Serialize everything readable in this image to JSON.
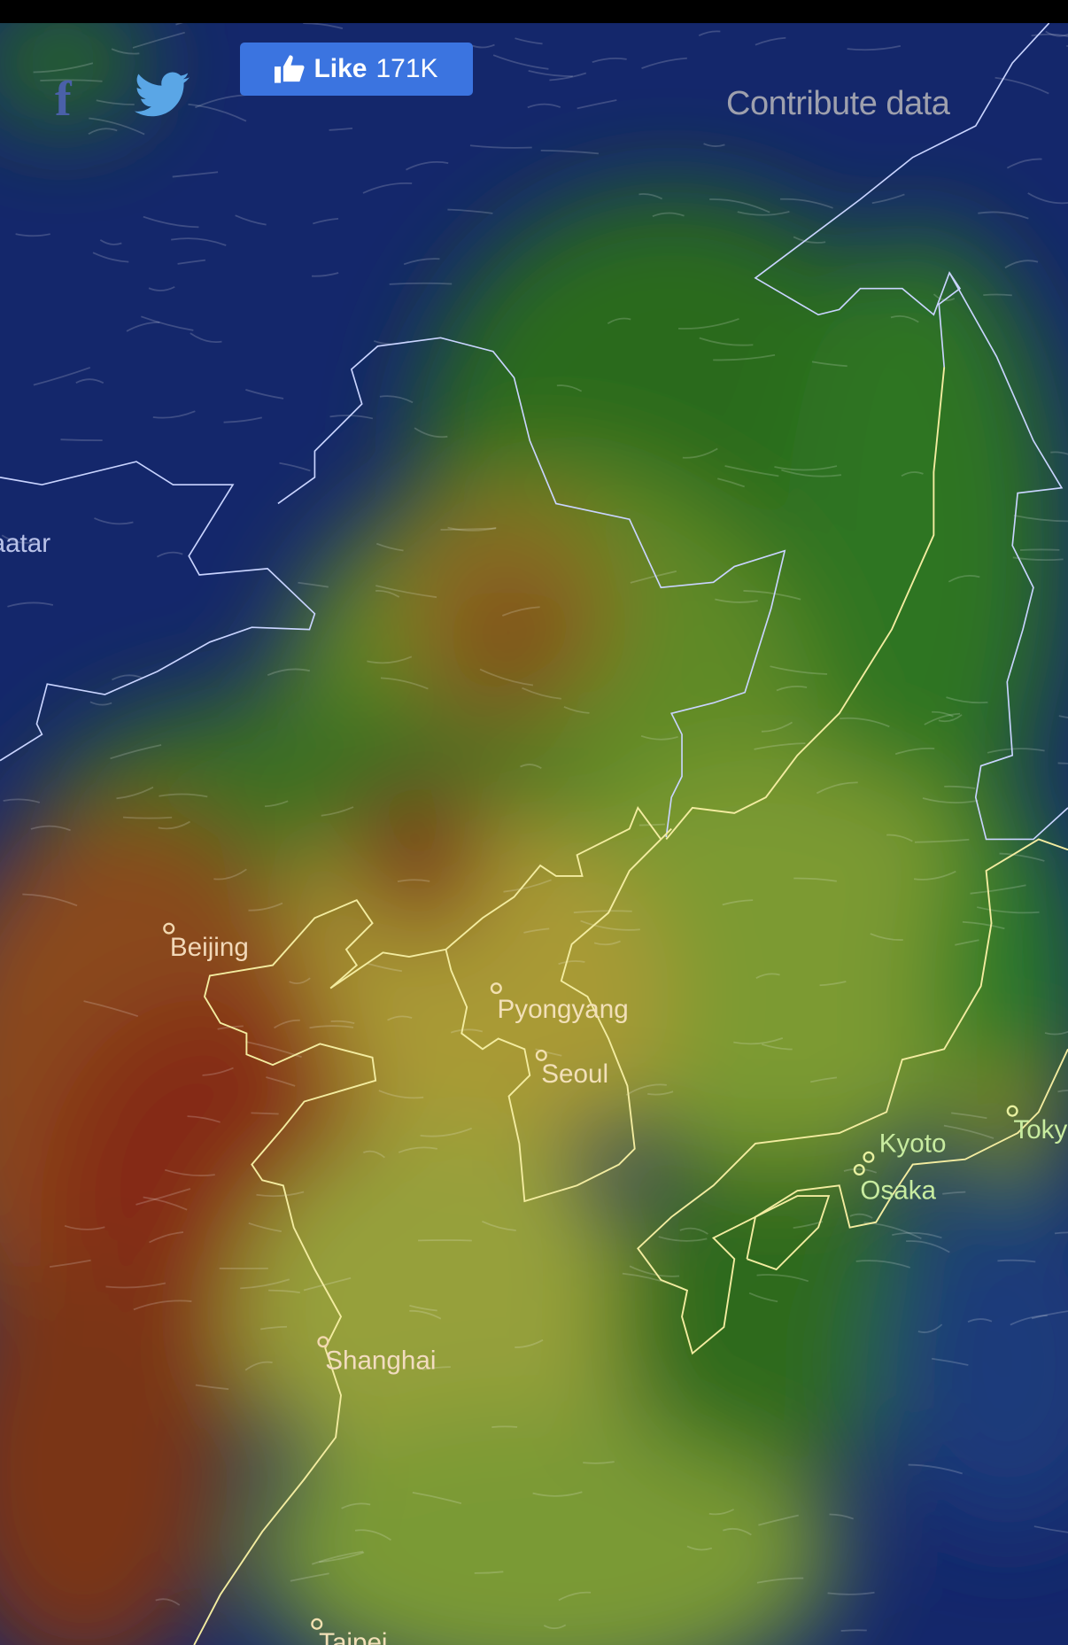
{
  "header": {
    "facebook_icon": "facebook-icon",
    "twitter_icon": "twitter-icon",
    "like_button": {
      "icon": "thumbs-up-icon",
      "label": "Like",
      "count": "171K",
      "color": "#3b74e0"
    },
    "contribute_label": "Contribute data"
  },
  "map": {
    "colors": {
      "low": "#14276b",
      "mid": "#2f6e1e",
      "high": "#a9a033",
      "very_high": "#8a2a12",
      "coastline_land": "#f3eca0",
      "border": "#c9d4ff"
    },
    "cities": [
      {
        "name": "Ulaanbaatar"
      },
      {
        "name": "Beijing"
      },
      {
        "name": "Pyongyang"
      },
      {
        "name": "Seoul"
      },
      {
        "name": "Shanghai"
      },
      {
        "name": "Kyoto"
      },
      {
        "name": "Osaka"
      },
      {
        "name": "Tokyo"
      },
      {
        "name": "Taipei"
      }
    ]
  }
}
